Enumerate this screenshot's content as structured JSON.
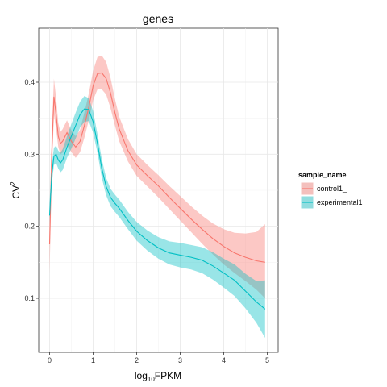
{
  "chart_data": {
    "type": "line",
    "title": "genes",
    "xlabel": {
      "base": "log",
      "sub": "10",
      "rest": "FPKM"
    },
    "ylabel": {
      "base": "CV",
      "sup": "2"
    },
    "xlim": [
      -0.25,
      5.25
    ],
    "ylim": [
      0.025,
      0.475
    ],
    "x_ticks": [
      0,
      1,
      2,
      3,
      4,
      5
    ],
    "x_tick_labels": [
      "0",
      "1",
      "2",
      "3",
      "4",
      "5"
    ],
    "y_ticks": [
      0.1,
      0.2,
      0.3,
      0.4
    ],
    "y_tick_labels": [
      "0.1",
      "0.2",
      "0.3",
      "0.4"
    ],
    "grid": true,
    "legend": {
      "title": "sample_name",
      "position": "right"
    },
    "series": [
      {
        "name": "control1_",
        "color": "#F8766D",
        "band_color": "#F8766D",
        "x": [
          0.0,
          0.05,
          0.1,
          0.15,
          0.2,
          0.25,
          0.3,
          0.4,
          0.5,
          0.6,
          0.7,
          0.8,
          0.9,
          1.0,
          1.1,
          1.2,
          1.3,
          1.4,
          1.5,
          1.6,
          1.8,
          2.0,
          2.25,
          2.5,
          2.75,
          3.0,
          3.25,
          3.5,
          3.75,
          4.0,
          4.25,
          4.5,
          4.75,
          4.95
        ],
        "y": [
          0.175,
          0.3,
          0.38,
          0.355,
          0.325,
          0.315,
          0.318,
          0.33,
          0.318,
          0.31,
          0.318,
          0.34,
          0.365,
          0.395,
          0.412,
          0.413,
          0.405,
          0.385,
          0.358,
          0.335,
          0.305,
          0.285,
          0.27,
          0.256,
          0.24,
          0.225,
          0.21,
          0.196,
          0.183,
          0.172,
          0.163,
          0.157,
          0.152,
          0.15
        ],
        "lower": [
          0.135,
          0.27,
          0.355,
          0.335,
          0.31,
          0.3,
          0.302,
          0.313,
          0.303,
          0.295,
          0.303,
          0.323,
          0.347,
          0.375,
          0.39,
          0.39,
          0.383,
          0.364,
          0.34,
          0.318,
          0.29,
          0.27,
          0.255,
          0.24,
          0.224,
          0.208,
          0.192,
          0.176,
          0.161,
          0.147,
          0.135,
          0.124,
          0.112,
          0.1
        ],
        "upper": [
          0.215,
          0.33,
          0.405,
          0.378,
          0.343,
          0.331,
          0.335,
          0.347,
          0.333,
          0.325,
          0.334,
          0.358,
          0.384,
          0.416,
          0.435,
          0.437,
          0.428,
          0.406,
          0.377,
          0.352,
          0.321,
          0.3,
          0.285,
          0.271,
          0.256,
          0.242,
          0.228,
          0.215,
          0.204,
          0.196,
          0.191,
          0.19,
          0.192,
          0.203
        ]
      },
      {
        "name": "experimental1",
        "color": "#00BFC4",
        "band_color": "#00BFC4",
        "x": [
          0.0,
          0.05,
          0.1,
          0.15,
          0.2,
          0.25,
          0.3,
          0.4,
          0.5,
          0.6,
          0.7,
          0.8,
          0.9,
          1.0,
          1.1,
          1.2,
          1.3,
          1.4,
          1.5,
          1.6,
          1.8,
          2.0,
          2.25,
          2.5,
          2.75,
          3.0,
          3.25,
          3.5,
          3.75,
          4.0,
          4.25,
          4.5,
          4.75,
          4.95
        ],
        "y": [
          0.215,
          0.272,
          0.297,
          0.3,
          0.292,
          0.288,
          0.292,
          0.31,
          0.325,
          0.34,
          0.355,
          0.363,
          0.362,
          0.345,
          0.315,
          0.28,
          0.255,
          0.24,
          0.232,
          0.225,
          0.208,
          0.193,
          0.18,
          0.17,
          0.163,
          0.16,
          0.157,
          0.153,
          0.145,
          0.135,
          0.125,
          0.11,
          0.095,
          0.085
        ],
        "lower": [
          0.195,
          0.258,
          0.285,
          0.288,
          0.28,
          0.275,
          0.278,
          0.295,
          0.308,
          0.322,
          0.337,
          0.345,
          0.346,
          0.33,
          0.302,
          0.267,
          0.243,
          0.228,
          0.22,
          0.213,
          0.196,
          0.18,
          0.166,
          0.155,
          0.147,
          0.143,
          0.14,
          0.135,
          0.126,
          0.115,
          0.103,
          0.086,
          0.066,
          0.045
        ],
        "upper": [
          0.235,
          0.286,
          0.309,
          0.312,
          0.305,
          0.302,
          0.307,
          0.325,
          0.342,
          0.358,
          0.373,
          0.381,
          0.378,
          0.36,
          0.328,
          0.293,
          0.267,
          0.252,
          0.244,
          0.237,
          0.22,
          0.206,
          0.194,
          0.185,
          0.179,
          0.177,
          0.174,
          0.171,
          0.164,
          0.155,
          0.147,
          0.134,
          0.124,
          0.125
        ]
      }
    ]
  }
}
